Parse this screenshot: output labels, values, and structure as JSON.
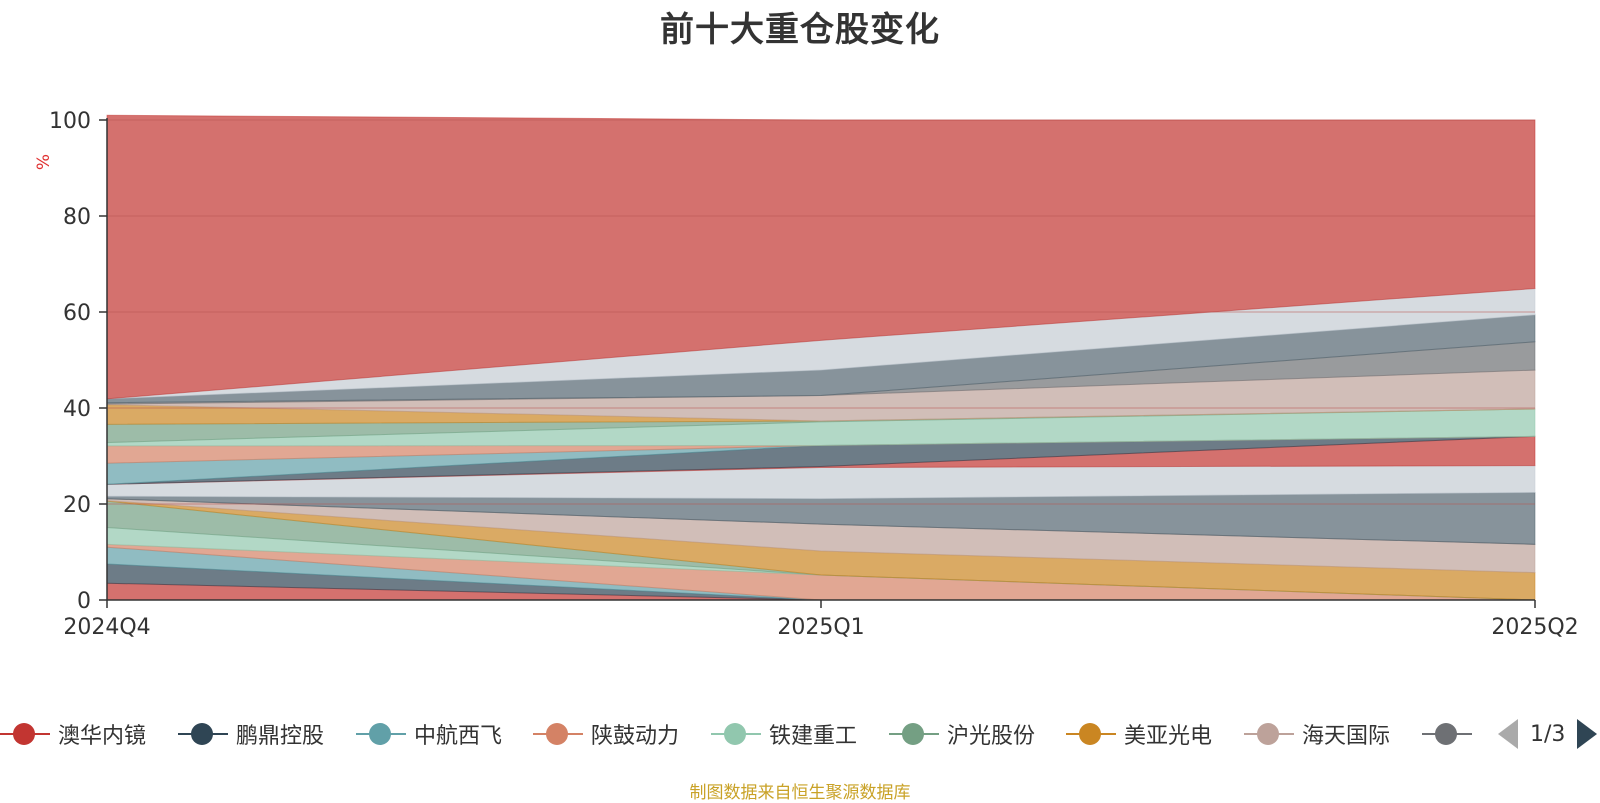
{
  "chart_data": {
    "type": "area",
    "title": "前十大重仓股变化",
    "ylabel": "%",
    "ylim": [
      0,
      100
    ],
    "yticks": [
      0,
      20,
      40,
      60,
      80,
      100
    ],
    "x": [
      "2024Q4",
      "2025Q1",
      "2025Q2"
    ],
    "grid": true,
    "stacked": true,
    "series": [
      {
        "name": "澳华内镜",
        "color": "#c23531",
        "values": [
          3.5,
          0,
          0
        ]
      },
      {
        "name": "鹏鼎控股",
        "color": "#2f4554",
        "values": [
          4.0,
          0,
          0
        ]
      },
      {
        "name": "中航西飞",
        "color": "#61a0a8",
        "values": [
          3.5,
          0,
          0
        ]
      },
      {
        "name": "陕鼓动力",
        "color": "#d48265",
        "values": [
          0.6,
          5.2,
          0
        ]
      },
      {
        "name": "铁建重工",
        "color": "#91c7ae",
        "values": [
          3.5,
          0,
          0
        ]
      },
      {
        "name": "沪光股份",
        "color": "#749f83",
        "values": [
          5.5,
          0,
          0
        ]
      },
      {
        "name": "美亚光电",
        "color": "#ca8622",
        "values": [
          0.1,
          5.0,
          5.7
        ]
      },
      {
        "name": "海天国际",
        "color": "#bda29a",
        "values": [
          0.4,
          5.6,
          5.9
        ]
      },
      {
        "name": "",
        "color": "#6e7074",
        "values": [
          0,
          0,
          0
        ]
      },
      {
        "name": "",
        "color": "#546570",
        "values": [
          0.5,
          5.3,
          10.8
        ]
      },
      {
        "name": "",
        "color": "#c4ccd3",
        "values": [
          2.5,
          6.5,
          5.6
        ]
      },
      {
        "name": "",
        "color": "#c23531",
        "values": [
          0,
          0.2,
          6.1
        ]
      },
      {
        "name": "",
        "color": "#2f4554",
        "values": [
          0,
          4.4,
          0
        ]
      },
      {
        "name": "",
        "color": "#61a0a8",
        "values": [
          4.4,
          0,
          0
        ]
      },
      {
        "name": "",
        "color": "#d48265",
        "values": [
          3.6,
          0,
          0
        ]
      },
      {
        "name": "",
        "color": "#91c7ae",
        "values": [
          0.7,
          4.9,
          5.7
        ]
      },
      {
        "name": "",
        "color": "#749f83",
        "values": [
          3.8,
          0.2,
          0
        ]
      },
      {
        "name": "",
        "color": "#ca8622",
        "values": [
          4.1,
          0,
          0
        ]
      },
      {
        "name": "",
        "color": "#bda29a",
        "values": [
          0.1,
          5.3,
          8.1
        ]
      },
      {
        "name": "",
        "color": "#6e7074",
        "values": [
          0.3,
          0,
          5.9
        ]
      },
      {
        "name": "",
        "color": "#546570",
        "values": [
          0.8,
          5.3,
          5.6
        ]
      },
      {
        "name": "",
        "color": "#c4ccd3",
        "values": [
          0,
          6.2,
          5.5
        ]
      },
      {
        "name": "",
        "color": "#c23531",
        "values": [
          59.1,
          45.9,
          35.1
        ]
      }
    ]
  },
  "legend": {
    "page_text": "1/3",
    "items": [
      {
        "label": "澳华内镜",
        "color": "#c23531"
      },
      {
        "label": "鹏鼎控股",
        "color": "#2f4554"
      },
      {
        "label": "中航西飞",
        "color": "#61a0a8"
      },
      {
        "label": "陕鼓动力",
        "color": "#d48265"
      },
      {
        "label": "铁建重工",
        "color": "#91c7ae"
      },
      {
        "label": "沪光股份",
        "color": "#749f83"
      },
      {
        "label": "美亚光电",
        "color": "#ca8622"
      },
      {
        "label": "海天国际",
        "color": "#bda29a"
      },
      {
        "label": "",
        "color": "#6e7074"
      }
    ]
  },
  "source_note": "制图数据来自恒生聚源数据库"
}
